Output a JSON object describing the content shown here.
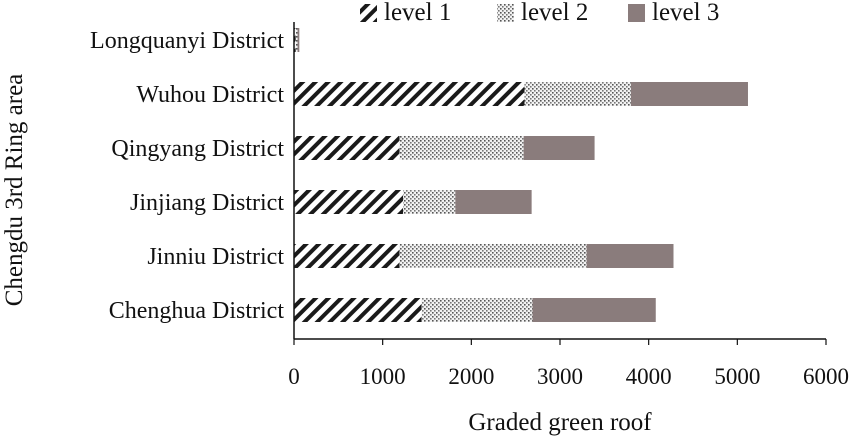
{
  "chart_data": {
    "type": "bar",
    "orientation": "horizontal",
    "stacked": true,
    "categories": [
      "Longquanyi District",
      "Wuhou District",
      "Qingyang District",
      "Jinjiang District",
      "Jinniu District",
      "Chenghua District"
    ],
    "series": [
      {
        "name": "level 1",
        "values": [
          20,
          2600,
          1190,
          1230,
          1190,
          1440
        ],
        "fill": "hatch"
      },
      {
        "name": "level 2",
        "values": [
          20,
          1200,
          1400,
          590,
          2110,
          1250
        ],
        "fill": "dots"
      },
      {
        "name": "level 3",
        "values": [
          20,
          1320,
          800,
          860,
          980,
          1390
        ],
        "fill": "solid",
        "color": "#8a7c7c"
      }
    ],
    "xlabel": "Graded green roof",
    "ylabel": "Chengdu 3rd Ring area",
    "xlim": [
      0,
      6000
    ],
    "xticks": [
      "0",
      "1000",
      "2000",
      "3000",
      "4000",
      "5000",
      "6000"
    ],
    "grid": false,
    "legend_position": "top"
  }
}
